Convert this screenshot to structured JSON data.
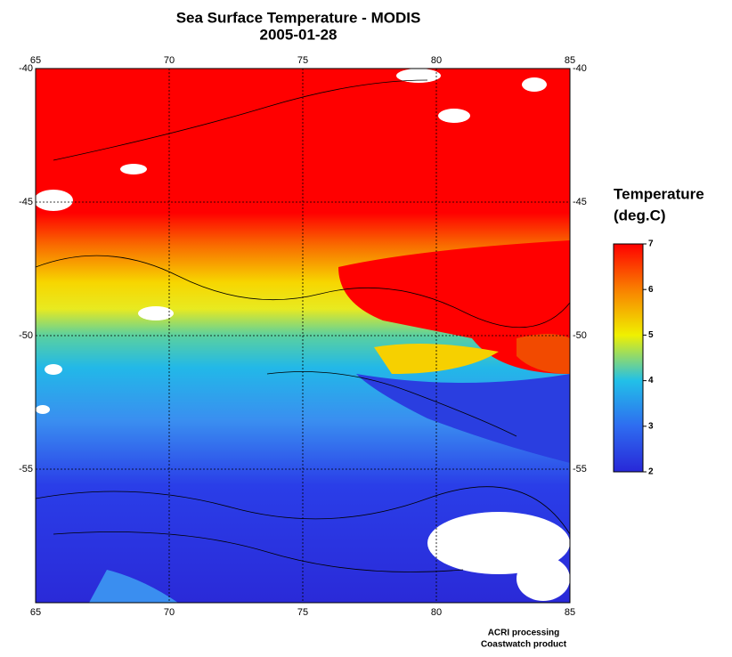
{
  "title": "Sea Surface Temperature - MODIS",
  "subtitle": "2005-01-28",
  "map": {
    "xlim": [
      65,
      85
    ],
    "ylim": [
      -60,
      -40
    ],
    "xticks": [
      65,
      70,
      75,
      80,
      85
    ],
    "yticks": [
      -40,
      -45,
      -50,
      -55
    ]
  },
  "colorbar": {
    "title": "Temperature",
    "units": "(deg.C)",
    "range": [
      2,
      7
    ],
    "ticks": [
      2,
      3,
      4,
      5,
      6,
      7
    ]
  },
  "credits": [
    "ACRI processing",
    "Coastwatch product"
  ]
}
